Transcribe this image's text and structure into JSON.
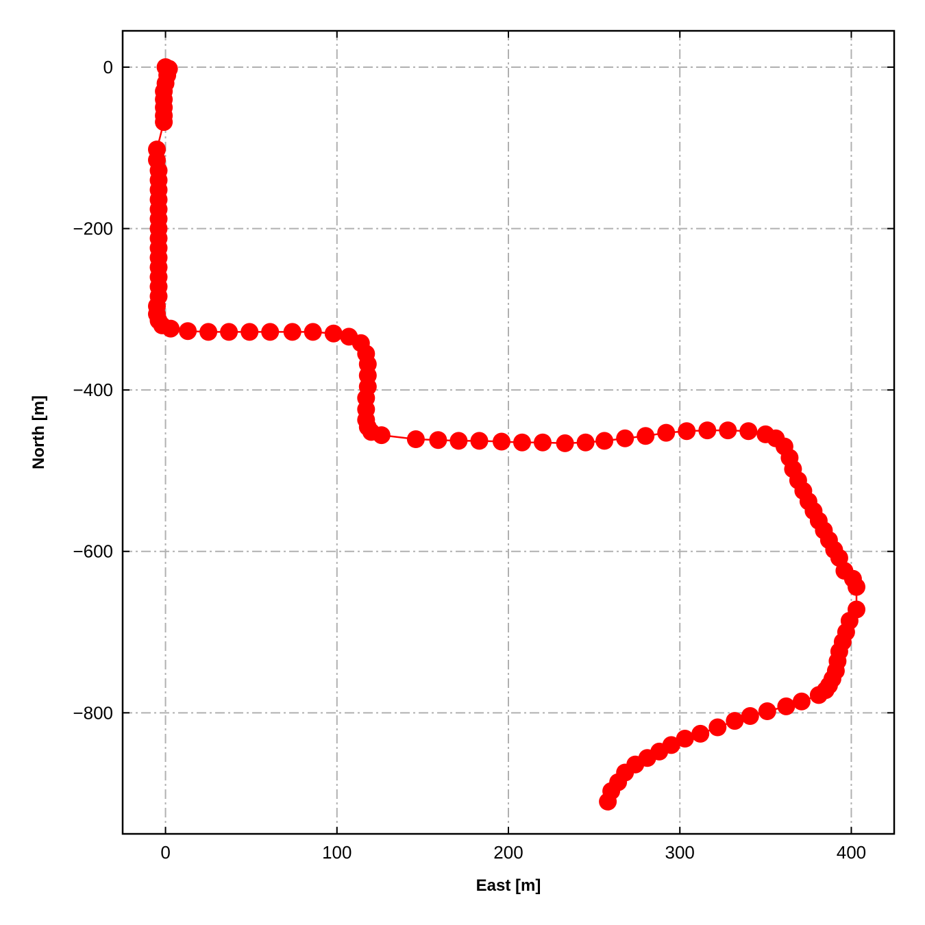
{
  "chart_data": {
    "type": "line",
    "xlabel": "East [m]",
    "ylabel": "North [m]",
    "xlim": [
      -25,
      425
    ],
    "ylim": [
      -950,
      45
    ],
    "xticks": [
      0,
      100,
      200,
      300,
      400
    ],
    "yticks": [
      0,
      -200,
      -400,
      -600,
      -800
    ],
    "xtick_labels": [
      "0",
      "100",
      "200",
      "300",
      "400"
    ],
    "ytick_labels": [
      "0",
      "−200",
      "−400",
      "−600",
      "−800"
    ],
    "grid": true,
    "grid_style": "dash-dot",
    "series": [
      {
        "color": "#ff0000",
        "marker": "circle",
        "x": [
          0,
          2,
          1,
          0,
          -1,
          -1,
          -1,
          -1,
          -1,
          -5,
          -5,
          -4,
          -4,
          -4,
          -4,
          -4,
          -4,
          -4,
          -4,
          -4,
          -4,
          -4,
          -4,
          -4,
          -4,
          -5,
          -5,
          -4,
          -2,
          3,
          13,
          25,
          37,
          49,
          61,
          74,
          86,
          98,
          107,
          114,
          117,
          118,
          118,
          118,
          117,
          117,
          117,
          118,
          120,
          126,
          146,
          159,
          171,
          183,
          196,
          208,
          220,
          233,
          245,
          256,
          268,
          280,
          292,
          304,
          316,
          328,
          340,
          350,
          356,
          361,
          364,
          366,
          369,
          372,
          375,
          378,
          381,
          384,
          387,
          390,
          393,
          396,
          401,
          403,
          403,
          399,
          397,
          395,
          393,
          392,
          391,
          389,
          387,
          385,
          381,
          371,
          362,
          351,
          341,
          332,
          322,
          312,
          303,
          295,
          288,
          281,
          274,
          268,
          264,
          260,
          258
        ],
        "y": [
          0,
          -2,
          -10,
          -20,
          -30,
          -40,
          -50,
          -60,
          -68,
          -102,
          -115,
          -128,
          -140,
          -152,
          -164,
          -176,
          -188,
          -200,
          -212,
          -224,
          -236,
          -248,
          -260,
          -272,
          -284,
          -296,
          -306,
          -314,
          -320,
          -324,
          -327,
          -328,
          -328,
          -328,
          -328,
          -328,
          -328,
          -330,
          -334,
          -342,
          -355,
          -368,
          -382,
          -396,
          -410,
          -424,
          -437,
          -446,
          -452,
          -456,
          -461,
          -462,
          -463,
          -463,
          -464,
          -465,
          -465,
          -466,
          -465,
          -463,
          -460,
          -457,
          -453,
          -451,
          -450,
          -450,
          -451,
          -455,
          -460,
          -470,
          -484,
          -498,
          -512,
          -525,
          -538,
          -550,
          -562,
          -574,
          -586,
          -598,
          -608,
          -624,
          -634,
          -644,
          -672,
          -686,
          -700,
          -712,
          -724,
          -736,
          -748,
          -758,
          -766,
          -772,
          -778,
          -786,
          -792,
          -798,
          -804,
          -810,
          -818,
          -826,
          -832,
          -840,
          -848,
          -856,
          -864,
          -874,
          -886,
          -897,
          -910
        ]
      }
    ]
  }
}
